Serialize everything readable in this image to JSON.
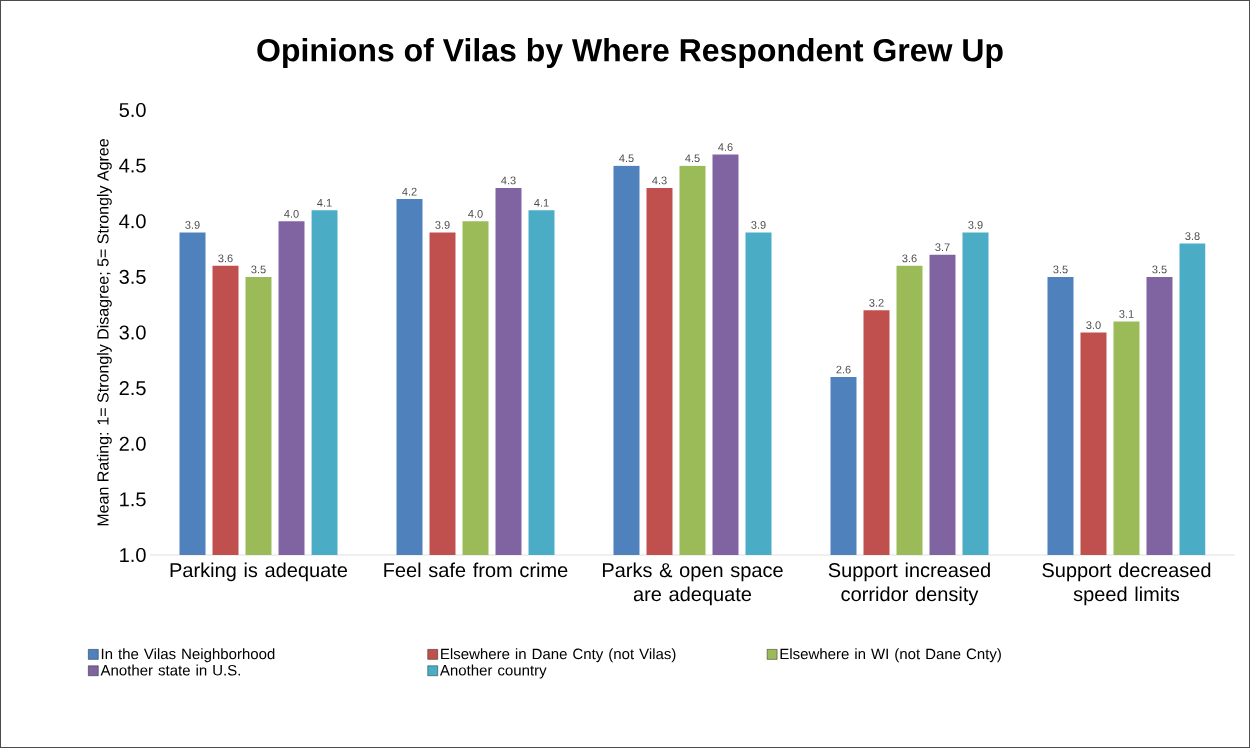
{
  "chart_data": {
    "type": "bar",
    "title": "Opinions of Vilas by Where Respondent Grew Up",
    "ylabel": "Mean Rating: 1= Strongly Disagree; 5= Strongly Agree",
    "categories": [
      "Parking is adequate",
      "Feel safe from crime",
      "Parks & open space are adequate",
      "Support increased corridor density",
      "Support decreased speed limits"
    ],
    "series": [
      {
        "name": "In the Vilas Neighborhood",
        "color": "#4f81bd",
        "values": [
          3.9,
          4.2,
          4.5,
          2.6,
          3.5
        ],
        "value_labels": [
          "3.9",
          "4.2",
          "4.5",
          "2.6",
          "3.5"
        ]
      },
      {
        "name": "Elsewhere in Dane Cnty (not Vilas)",
        "color": "#c0504d",
        "values": [
          3.6,
          3.9,
          4.3,
          3.2,
          3.0
        ],
        "value_labels": [
          "3.6",
          "3.9",
          "4.3",
          "3.2",
          "3.0"
        ]
      },
      {
        "name": "Elsewhere in WI (not Dane Cnty)",
        "color": "#9bbb59",
        "values": [
          3.5,
          4.0,
          4.5,
          3.6,
          3.1
        ],
        "value_labels": [
          "3.5",
          "4.0",
          "4.5",
          "3.6",
          "3.1"
        ]
      },
      {
        "name": "Another state in U.S.",
        "color": "#8064a2",
        "values": [
          4.0,
          4.3,
          4.6,
          3.7,
          3.5
        ],
        "value_labels": [
          "4.0",
          "4.3",
          "4.6",
          "3.7",
          "3.5"
        ]
      },
      {
        "name": "Another country",
        "color": "#4bacc6",
        "values": [
          4.1,
          4.1,
          3.9,
          3.9,
          3.8
        ],
        "value_labels": [
          "4.1",
          "4.1",
          "3.9",
          "3.9",
          "3.8"
        ]
      }
    ],
    "ylim": [
      1,
      5
    ],
    "yticks": [
      {
        "value": 1,
        "label": "1.0"
      },
      {
        "value": 1.5,
        "label": "1.5"
      },
      {
        "value": 2,
        "label": "2.0"
      },
      {
        "value": 2.5,
        "label": "2.5"
      },
      {
        "value": 3,
        "label": "3.0"
      },
      {
        "value": 3.5,
        "label": "3.5"
      },
      {
        "value": 4,
        "label": "4.0"
      },
      {
        "value": 4.5,
        "label": "4.5"
      },
      {
        "value": 5,
        "label": "5.0"
      }
    ],
    "grid": false,
    "legend": "bottom"
  }
}
